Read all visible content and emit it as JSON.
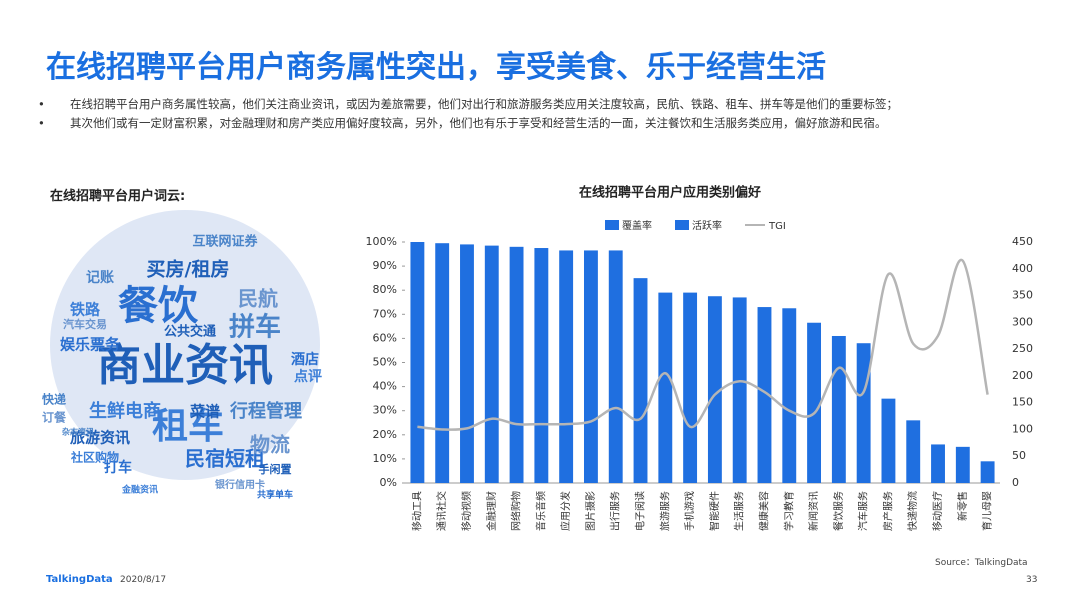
{
  "header": {
    "title": "在线招聘平台用户商务属性突出，享受美食、乐于经营生活",
    "bullets": [
      "在线招聘平台用户商务属性较高，他们关注商业资讯，或因为差旅需要，他们对出行和旅游服务类应用关注度较高，民航、铁路、租车、拼车等是他们的重要标签；",
      "其次他们或有一定财富积累，对金融理财和房产类应用偏好度较高，另外，他们也有乐于享受和经营生活的一面，关注餐饮和生活服务类应用，偏好旅游和民宿。"
    ]
  },
  "word_cloud": {
    "label": "在线招聘平台用户词云:",
    "words": [
      "商业资讯",
      "餐饮",
      "租车",
      "拼车",
      "民航",
      "买房/租房",
      "民宿短租",
      "生鲜电商",
      "行程管理",
      "物流",
      "旅游资讯",
      "娱乐票务",
      "铁路",
      "记账",
      "汽车交易",
      "公共交通",
      "酒店",
      "点评",
      "快递",
      "订餐",
      "菜谱",
      "打车",
      "社区购物",
      "互联网证券",
      "银行信用卡",
      "手闲置",
      "共享单车",
      "金融资讯",
      "杂志资讯"
    ]
  },
  "chart_data": {
    "type": "bar",
    "title": "在线招聘平台用户应用类别偏好",
    "categories": [
      "移动工具",
      "通讯社交",
      "移动视频",
      "金融理财",
      "网络购物",
      "音乐音频",
      "应用分发",
      "图片摄影",
      "出行服务",
      "电子阅读",
      "旅游服务",
      "手机游戏",
      "智能硬件",
      "生活服务",
      "健康美容",
      "学习教育",
      "新闻资讯",
      "餐饮服务",
      "汽车服务",
      "房产服务",
      "快递物流",
      "移动医疗",
      "新零售",
      "育儿母婴"
    ],
    "series": [
      {
        "name": "覆盖率",
        "color": "#1f6fe0",
        "values": [
          100,
          99.5,
          99,
          98.5,
          98,
          97.5,
          96.5,
          96.5,
          96.5,
          85,
          79,
          79,
          77.5,
          77,
          73,
          72.5,
          66.5,
          61,
          58,
          35,
          26,
          16,
          15,
          9
        ]
      },
      {
        "name": "TGI",
        "color": "#b5b5b5",
        "axis": "y2",
        "values": [
          105,
          100,
          102,
          120,
          110,
          110,
          110,
          115,
          140,
          120,
          205,
          105,
          165,
          190,
          170,
          135,
          130,
          215,
          170,
          390,
          260,
          275,
          415,
          165
        ]
      }
    ],
    "legend": [
      {
        "name": "覆盖率",
        "color": "#1f6fe0"
      },
      {
        "name": "活跃率",
        "color": "#1f6fe0"
      },
      {
        "name": "TGI",
        "color": "#b5b5b5"
      }
    ],
    "ylim": [
      0,
      100
    ],
    "yticks": [
      {
        "value": 0,
        "label": "0%"
      },
      {
        "value": 10,
        "label": "10%"
      },
      {
        "value": 20,
        "label": "20%"
      },
      {
        "value": 30,
        "label": "30%"
      },
      {
        "value": 40,
        "label": "40%"
      },
      {
        "value": 50,
        "label": "50%"
      },
      {
        "value": 60,
        "label": "60%"
      },
      {
        "value": 70,
        "label": "70%"
      },
      {
        "value": 80,
        "label": "80%"
      },
      {
        "value": 90,
        "label": "90%"
      },
      {
        "value": 100,
        "label": "100%"
      }
    ],
    "y2lim": [
      0,
      450
    ],
    "y2ticks": [
      0,
      50,
      100,
      150,
      200,
      250,
      300,
      350,
      400,
      450
    ],
    "source": "Source：TalkingData"
  },
  "footer": {
    "brand": "TalkingData",
    "date": "2020/8/17",
    "page": "33"
  }
}
